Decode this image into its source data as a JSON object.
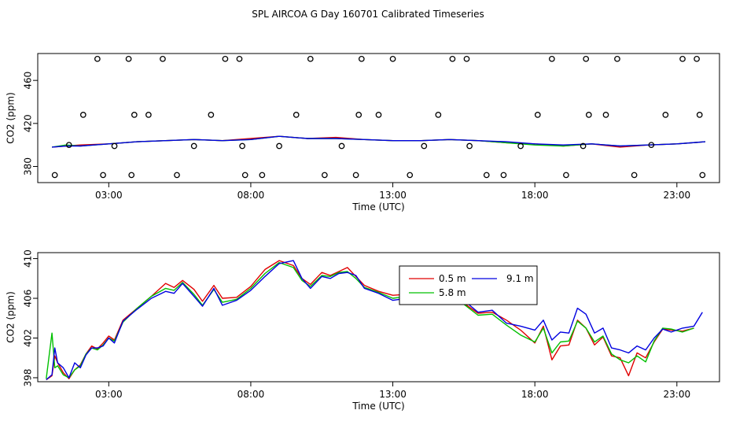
{
  "title": "SPL AIRCOA G  Day 160701  Calibrated Timeseries",
  "colors": {
    "0.5 m": "#e00000",
    "5.8 m": "#00c000",
    "9.1 m": "#0000e0",
    "frame": "#000000"
  },
  "chart_data": [
    {
      "type": "line",
      "xlabel": "Time (UTC)",
      "ylabel": "CO2 (ppm)",
      "xlim": [
        0.5,
        24.5
      ],
      "ylim": [
        365,
        485
      ],
      "x_ticks": [
        3,
        8,
        13,
        18,
        23
      ],
      "x_tick_labels": [
        "03:00",
        "08:00",
        "13:00",
        "18:00",
        "23:00"
      ],
      "y_ticks": [
        380,
        420,
        460
      ],
      "y_tick_labels": [
        "380",
        "420",
        "460"
      ],
      "grid": false,
      "series": [
        {
          "color": "#e00000",
          "x": [
            1.0,
            1.5,
            2.0,
            3.0,
            4.0,
            5.0,
            6.0,
            7.0,
            8.0,
            9.0,
            10.0,
            11.0,
            12.0,
            13.0,
            14.0,
            15.0,
            16.0,
            17.0,
            18.0,
            19.0,
            20.0,
            21.0,
            22.0,
            23.0,
            24.0
          ],
          "y": [
            398,
            399,
            400,
            401,
            403,
            404,
            405,
            404,
            406,
            408,
            406,
            407,
            405,
            404,
            404,
            405,
            404,
            402,
            401,
            399,
            401,
            398,
            400,
            401,
            403
          ]
        },
        {
          "color": "#00c000",
          "x": [
            1.0,
            1.5,
            2.0,
            3.0,
            4.0,
            5.0,
            6.0,
            7.0,
            8.0,
            9.0,
            10.0,
            11.0,
            12.0,
            13.0,
            14.0,
            15.0,
            16.0,
            17.0,
            18.0,
            19.0,
            20.0,
            21.0,
            22.0,
            23.0,
            24.0
          ],
          "y": [
            398,
            400,
            399,
            401,
            403,
            404,
            405,
            404,
            405,
            408,
            406,
            406,
            405,
            404,
            404,
            405,
            404,
            402,
            400,
            399,
            401,
            399,
            400,
            401,
            403
          ]
        },
        {
          "color": "#0000e0",
          "x": [
            1.0,
            1.5,
            2.0,
            3.0,
            4.0,
            5.0,
            6.0,
            7.0,
            8.0,
            9.0,
            10.0,
            11.0,
            12.0,
            13.0,
            14.0,
            15.0,
            16.0,
            17.0,
            18.0,
            19.0,
            20.0,
            21.0,
            22.0,
            23.0,
            24.0
          ],
          "y": [
            398,
            399,
            399,
            401,
            403,
            404,
            405,
            404,
            405,
            408,
            406,
            406,
            405,
            404,
            404,
            405,
            404,
            403,
            401,
            400,
            401,
            399,
            400,
            401,
            403
          ]
        },
        {
          "type": "scatter",
          "marker": "open-circle",
          "color": "#000000",
          "x": [
            1.1,
            1.6,
            2.1,
            2.6,
            2.8,
            3.2,
            3.7,
            3.8,
            3.9,
            4.4,
            4.9,
            5.4,
            6.0,
            6.6,
            7.1,
            7.6,
            7.7,
            7.8,
            8.4,
            9.0,
            9.6,
            10.1,
            10.6,
            11.2,
            11.7,
            11.8,
            11.9,
            12.5,
            13.0,
            13.6,
            14.1,
            14.6,
            15.1,
            15.6,
            15.7,
            16.3,
            16.9,
            17.5,
            18.1,
            18.6,
            19.1,
            19.7,
            19.8,
            19.9,
            20.5,
            20.9,
            21.5,
            22.1,
            22.6,
            23.2,
            23.7,
            23.8,
            23.9
          ],
          "y": [
            372,
            400,
            428,
            480,
            372,
            399,
            480,
            372,
            428,
            428,
            480,
            372,
            399,
            428,
            480,
            480,
            399,
            372,
            372,
            399,
            428,
            480,
            372,
            399,
            372,
            428,
            480,
            428,
            480,
            372,
            399,
            428,
            480,
            480,
            399,
            372,
            372,
            399,
            428,
            480,
            372,
            399,
            480,
            428,
            428,
            480,
            372,
            400,
            428,
            480,
            480,
            428,
            372
          ]
        }
      ]
    },
    {
      "type": "line",
      "xlabel": "Time (UTC)",
      "ylabel": "CO2 (ppm)",
      "xlim": [
        0.5,
        24.5
      ],
      "ylim": [
        397.6,
        410.6
      ],
      "x_ticks": [
        3,
        8,
        13,
        18,
        23
      ],
      "x_tick_labels": [
        "03:00",
        "08:00",
        "13:00",
        "18:00",
        "23:00"
      ],
      "y_ticks": [
        398,
        402,
        406,
        410
      ],
      "y_tick_labels": [
        "398",
        "402",
        "406",
        "410"
      ],
      "grid": false,
      "legend": "top-right",
      "series": [
        {
          "name": "0.5 m",
          "color": "#e00000",
          "x": [
            0.8,
            1.0,
            1.1,
            1.2,
            1.4,
            1.6,
            1.8,
            2.0,
            2.2,
            2.4,
            2.6,
            2.8,
            3.0,
            3.2,
            3.5,
            4.0,
            4.5,
            5.0,
            5.3,
            5.6,
            6.0,
            6.3,
            6.7,
            7.0,
            7.5,
            8.0,
            8.5,
            9.0,
            9.5,
            9.8,
            10.1,
            10.5,
            10.8,
            11.1,
            11.4,
            11.7,
            12.0,
            12.5,
            13.0,
            13.5,
            14.0,
            14.5,
            15.0,
            15.5,
            16.0,
            16.5,
            17.0,
            17.5,
            18.0,
            18.3,
            18.6,
            18.9,
            19.2,
            19.5,
            19.8,
            20.1,
            20.4,
            20.7,
            21.0,
            21.3,
            21.6,
            21.9,
            22.2,
            22.5,
            22.8,
            23.2,
            23.6
          ],
          "y": [
            397.8,
            398.2,
            400.2,
            399.5,
            398.5,
            397.9,
            398.8,
            399.3,
            400.4,
            401.2,
            400.9,
            401.5,
            402.2,
            401.8,
            403.8,
            405.0,
            406.2,
            407.5,
            407.1,
            407.8,
            406.9,
            405.7,
            407.3,
            406.0,
            406.1,
            407.2,
            408.9,
            409.8,
            409.3,
            408.0,
            407.4,
            408.6,
            408.3,
            408.7,
            409.1,
            408.2,
            407.3,
            406.7,
            406.3,
            406.4,
            406.4,
            406.1,
            406.0,
            405.5,
            404.5,
            404.6,
            403.8,
            402.8,
            401.5,
            403.2,
            399.8,
            401.2,
            401.3,
            403.8,
            403.0,
            401.3,
            402.1,
            400.2,
            400.0,
            398.2,
            400.5,
            400.0,
            401.6,
            402.9,
            402.8,
            402.7,
            403.0
          ]
        },
        {
          "name": "5.8 m",
          "color": "#00c000",
          "x": [
            0.8,
            1.0,
            1.1,
            1.2,
            1.4,
            1.6,
            1.8,
            2.0,
            2.2,
            2.4,
            2.6,
            2.8,
            3.0,
            3.2,
            3.5,
            4.0,
            4.5,
            5.0,
            5.3,
            5.6,
            6.0,
            6.3,
            6.7,
            7.0,
            7.5,
            8.0,
            8.5,
            9.0,
            9.5,
            9.8,
            10.1,
            10.5,
            10.8,
            11.1,
            11.4,
            11.7,
            12.0,
            12.5,
            13.0,
            13.5,
            14.0,
            14.5,
            15.0,
            15.5,
            16.0,
            16.5,
            17.0,
            17.5,
            18.0,
            18.3,
            18.6,
            18.9,
            19.2,
            19.5,
            19.8,
            20.1,
            20.4,
            20.7,
            21.0,
            21.3,
            21.6,
            21.9,
            22.2,
            22.5,
            22.8,
            23.2,
            23.6
          ],
          "y": [
            397.9,
            402.5,
            399.0,
            399.2,
            398.3,
            398.0,
            398.8,
            399.2,
            400.4,
            401.0,
            400.8,
            401.3,
            402.0,
            401.7,
            403.6,
            405.0,
            406.2,
            407.0,
            406.8,
            407.6,
            406.4,
            405.3,
            406.9,
            405.6,
            405.9,
            407.0,
            408.5,
            409.6,
            409.1,
            407.8,
            407.2,
            408.3,
            408.2,
            408.6,
            408.7,
            408.0,
            407.1,
            406.6,
            406.0,
            406.2,
            406.0,
            405.9,
            405.8,
            405.4,
            404.3,
            404.4,
            403.3,
            402.3,
            401.6,
            403.0,
            400.5,
            401.6,
            401.7,
            403.7,
            403.0,
            401.6,
            402.2,
            400.4,
            399.8,
            399.5,
            400.2,
            399.6,
            401.7,
            403.0,
            402.9,
            402.6,
            403.0
          ]
        },
        {
          "name": "9.1 m",
          "color": "#0000e0",
          "x": [
            0.8,
            1.0,
            1.1,
            1.2,
            1.4,
            1.6,
            1.8,
            2.0,
            2.2,
            2.4,
            2.6,
            2.8,
            3.0,
            3.2,
            3.5,
            4.0,
            4.5,
            5.0,
            5.3,
            5.6,
            6.0,
            6.3,
            6.7,
            7.0,
            7.5,
            8.0,
            8.5,
            9.0,
            9.5,
            9.8,
            10.1,
            10.5,
            10.8,
            11.1,
            11.4,
            11.7,
            12.0,
            12.5,
            13.0,
            13.5,
            14.0,
            14.5,
            15.0,
            15.5,
            16.0,
            16.5,
            17.0,
            17.5,
            18.0,
            18.3,
            18.6,
            18.9,
            19.2,
            19.5,
            19.8,
            20.1,
            20.4,
            20.7,
            21.0,
            21.3,
            21.6,
            21.9,
            22.2,
            22.5,
            22.8,
            23.2,
            23.6,
            23.9
          ],
          "y": [
            397.8,
            398.3,
            401.0,
            399.5,
            399.0,
            398.0,
            399.5,
            399.0,
            400.3,
            401.0,
            401.0,
            401.2,
            402.0,
            401.5,
            403.7,
            404.9,
            406.0,
            406.7,
            406.5,
            407.5,
            406.2,
            405.2,
            407.0,
            405.3,
            405.8,
            406.8,
            408.2,
            409.5,
            409.8,
            408.0,
            407.0,
            408.2,
            408.0,
            408.5,
            408.6,
            408.3,
            407.0,
            406.5,
            405.8,
            406.0,
            406.2,
            406.0,
            405.6,
            405.8,
            404.6,
            404.8,
            403.5,
            403.2,
            402.8,
            403.8,
            401.8,
            402.6,
            402.5,
            405.0,
            404.4,
            402.5,
            403.0,
            401.0,
            400.8,
            400.5,
            401.2,
            400.8,
            402.0,
            402.9,
            402.6,
            403.0,
            403.2,
            404.6
          ]
        }
      ]
    }
  ]
}
